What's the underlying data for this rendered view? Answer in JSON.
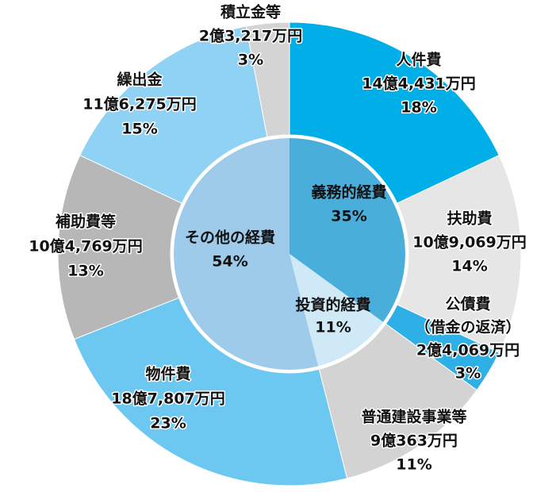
{
  "chart_data": {
    "type": "donut",
    "rings": [
      {
        "categories": [
          "人件費",
          "扶助費",
          "公債費（借金の返済）",
          "普通建設事業等",
          "物件費",
          "補助費等",
          "繰出金",
          "積立金等"
        ],
        "values": [
          18,
          14,
          3,
          11,
          23,
          13,
          15,
          3
        ],
        "value_labels": [
          "18%",
          "14%",
          "3%",
          "11%",
          "23%",
          "13%",
          "15%",
          "3%"
        ],
        "amount_labels": [
          "14億4,431万円",
          "10億9,069万円",
          "2億4,069万円",
          "9億363万円",
          "18億7,807万円",
          "10億4,769万円",
          "11億6,275万円",
          "2億3,217万円"
        ],
        "colors": [
          "#00aee8",
          "#e6e6e6",
          "#2eb0e6",
          "#d3d3d3",
          "#6cc8f0",
          "#b7b7b7",
          "#8fd2f3",
          "#d4d4d4"
        ]
      },
      {
        "categories": [
          "義務的経費",
          "投資的経費",
          "その他の経費"
        ],
        "values": [
          35,
          11,
          54
        ],
        "value_labels": [
          "35%",
          "11%",
          "54%"
        ],
        "colors": [
          "#4aaedb",
          "#cfe9f7",
          "#9dcbe9"
        ]
      }
    ]
  }
}
